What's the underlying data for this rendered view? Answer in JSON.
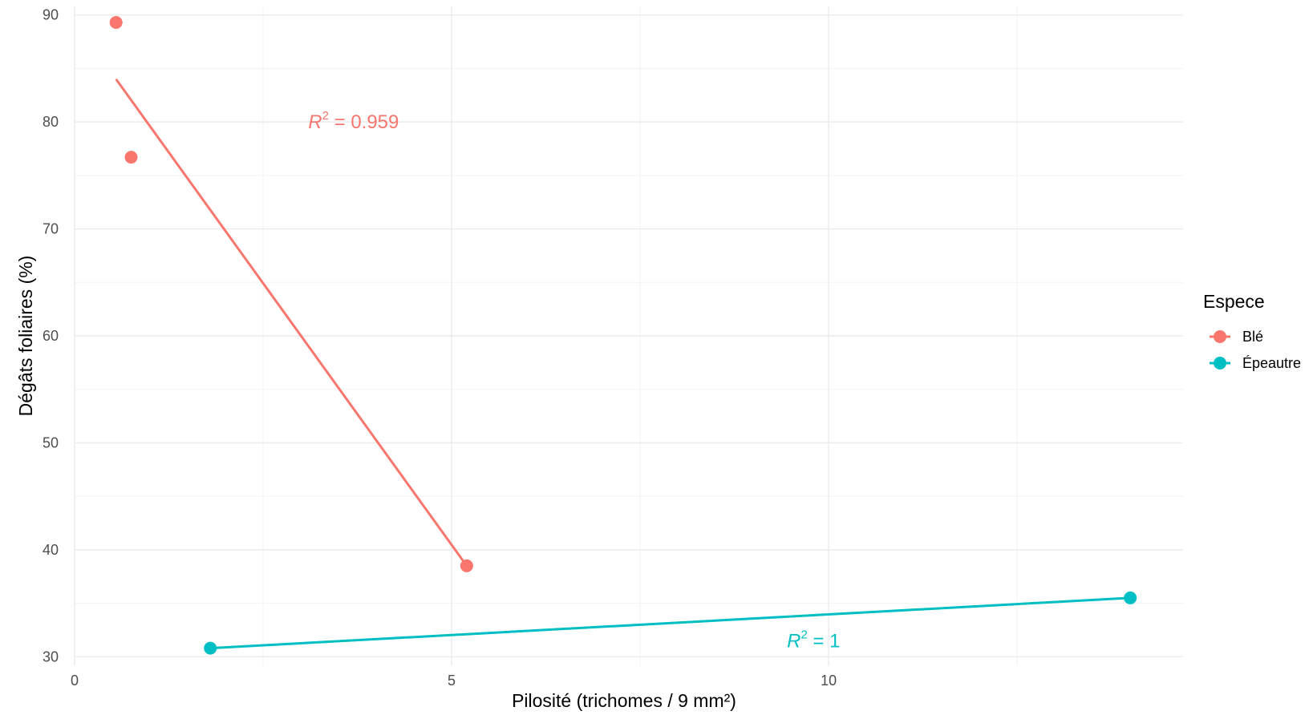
{
  "chart_data": {
    "type": "scatter",
    "title": "",
    "xlabel": "Pilosité (trichomes / 9 mm²)",
    "ylabel": "Dégâts foliaires (%)",
    "xlim": [
      0,
      14.7
    ],
    "ylim": [
      29.2,
      90.8
    ],
    "x_ticks": [
      0,
      5,
      10
    ],
    "y_ticks": [
      30,
      40,
      50,
      60,
      70,
      80,
      90
    ],
    "grid": true,
    "legend": {
      "title": "Espece",
      "position": "right"
    },
    "series": [
      {
        "name": "Blé",
        "color": "#F8766D",
        "points": [
          {
            "x": 0.55,
            "y": 89.3
          },
          {
            "x": 0.75,
            "y": 76.7
          },
          {
            "x": 5.2,
            "y": 38.5
          }
        ],
        "fit_line": {
          "x": [
            0.55,
            5.2
          ],
          "y": [
            84.0,
            38.5
          ]
        },
        "annotation": {
          "label": "R",
          "superscript": "2",
          "value": "= 0.959",
          "x": 3.7,
          "y": 80.0
        }
      },
      {
        "name": "Épeautre",
        "color": "#00BFC4",
        "points": [
          {
            "x": 1.8,
            "y": 30.8
          },
          {
            "x": 14.0,
            "y": 35.5
          }
        ],
        "fit_line": {
          "x": [
            1.8,
            14.0
          ],
          "y": [
            30.8,
            35.5
          ]
        },
        "annotation": {
          "label": "R",
          "superscript": "2",
          "value": "= 1",
          "x": 9.8,
          "y": 31.5
        }
      }
    ]
  }
}
